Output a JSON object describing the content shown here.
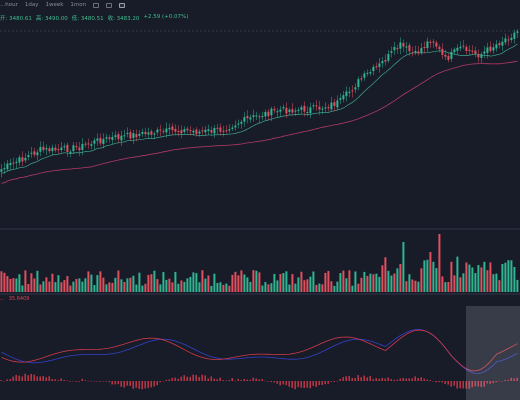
{
  "toolbar": {
    "timeframes": [
      "...hour",
      "1day",
      "1week",
      "1mon"
    ],
    "icons": [
      "layout-icon",
      "settings-icon",
      "fullscreen-icon"
    ]
  },
  "ohlc": {
    "open": "开: 3480.61",
    "high": "高: 3490.00",
    "low": "低: 3480.51",
    "close": "收: 3483.20",
    "change": "+2.59 (+0.07%)"
  },
  "indicator": {
    "label1": "...",
    "value2": "35.6409"
  },
  "colors": {
    "background": "#181b28",
    "up": "#2fb592",
    "down": "#e0505e",
    "ma_short": "#3fa88a",
    "ma_long": "#b03a64",
    "osc_blue": "#3342c8",
    "osc_red": "#d23a4a",
    "highlight": "#cfd3e0"
  }
}
